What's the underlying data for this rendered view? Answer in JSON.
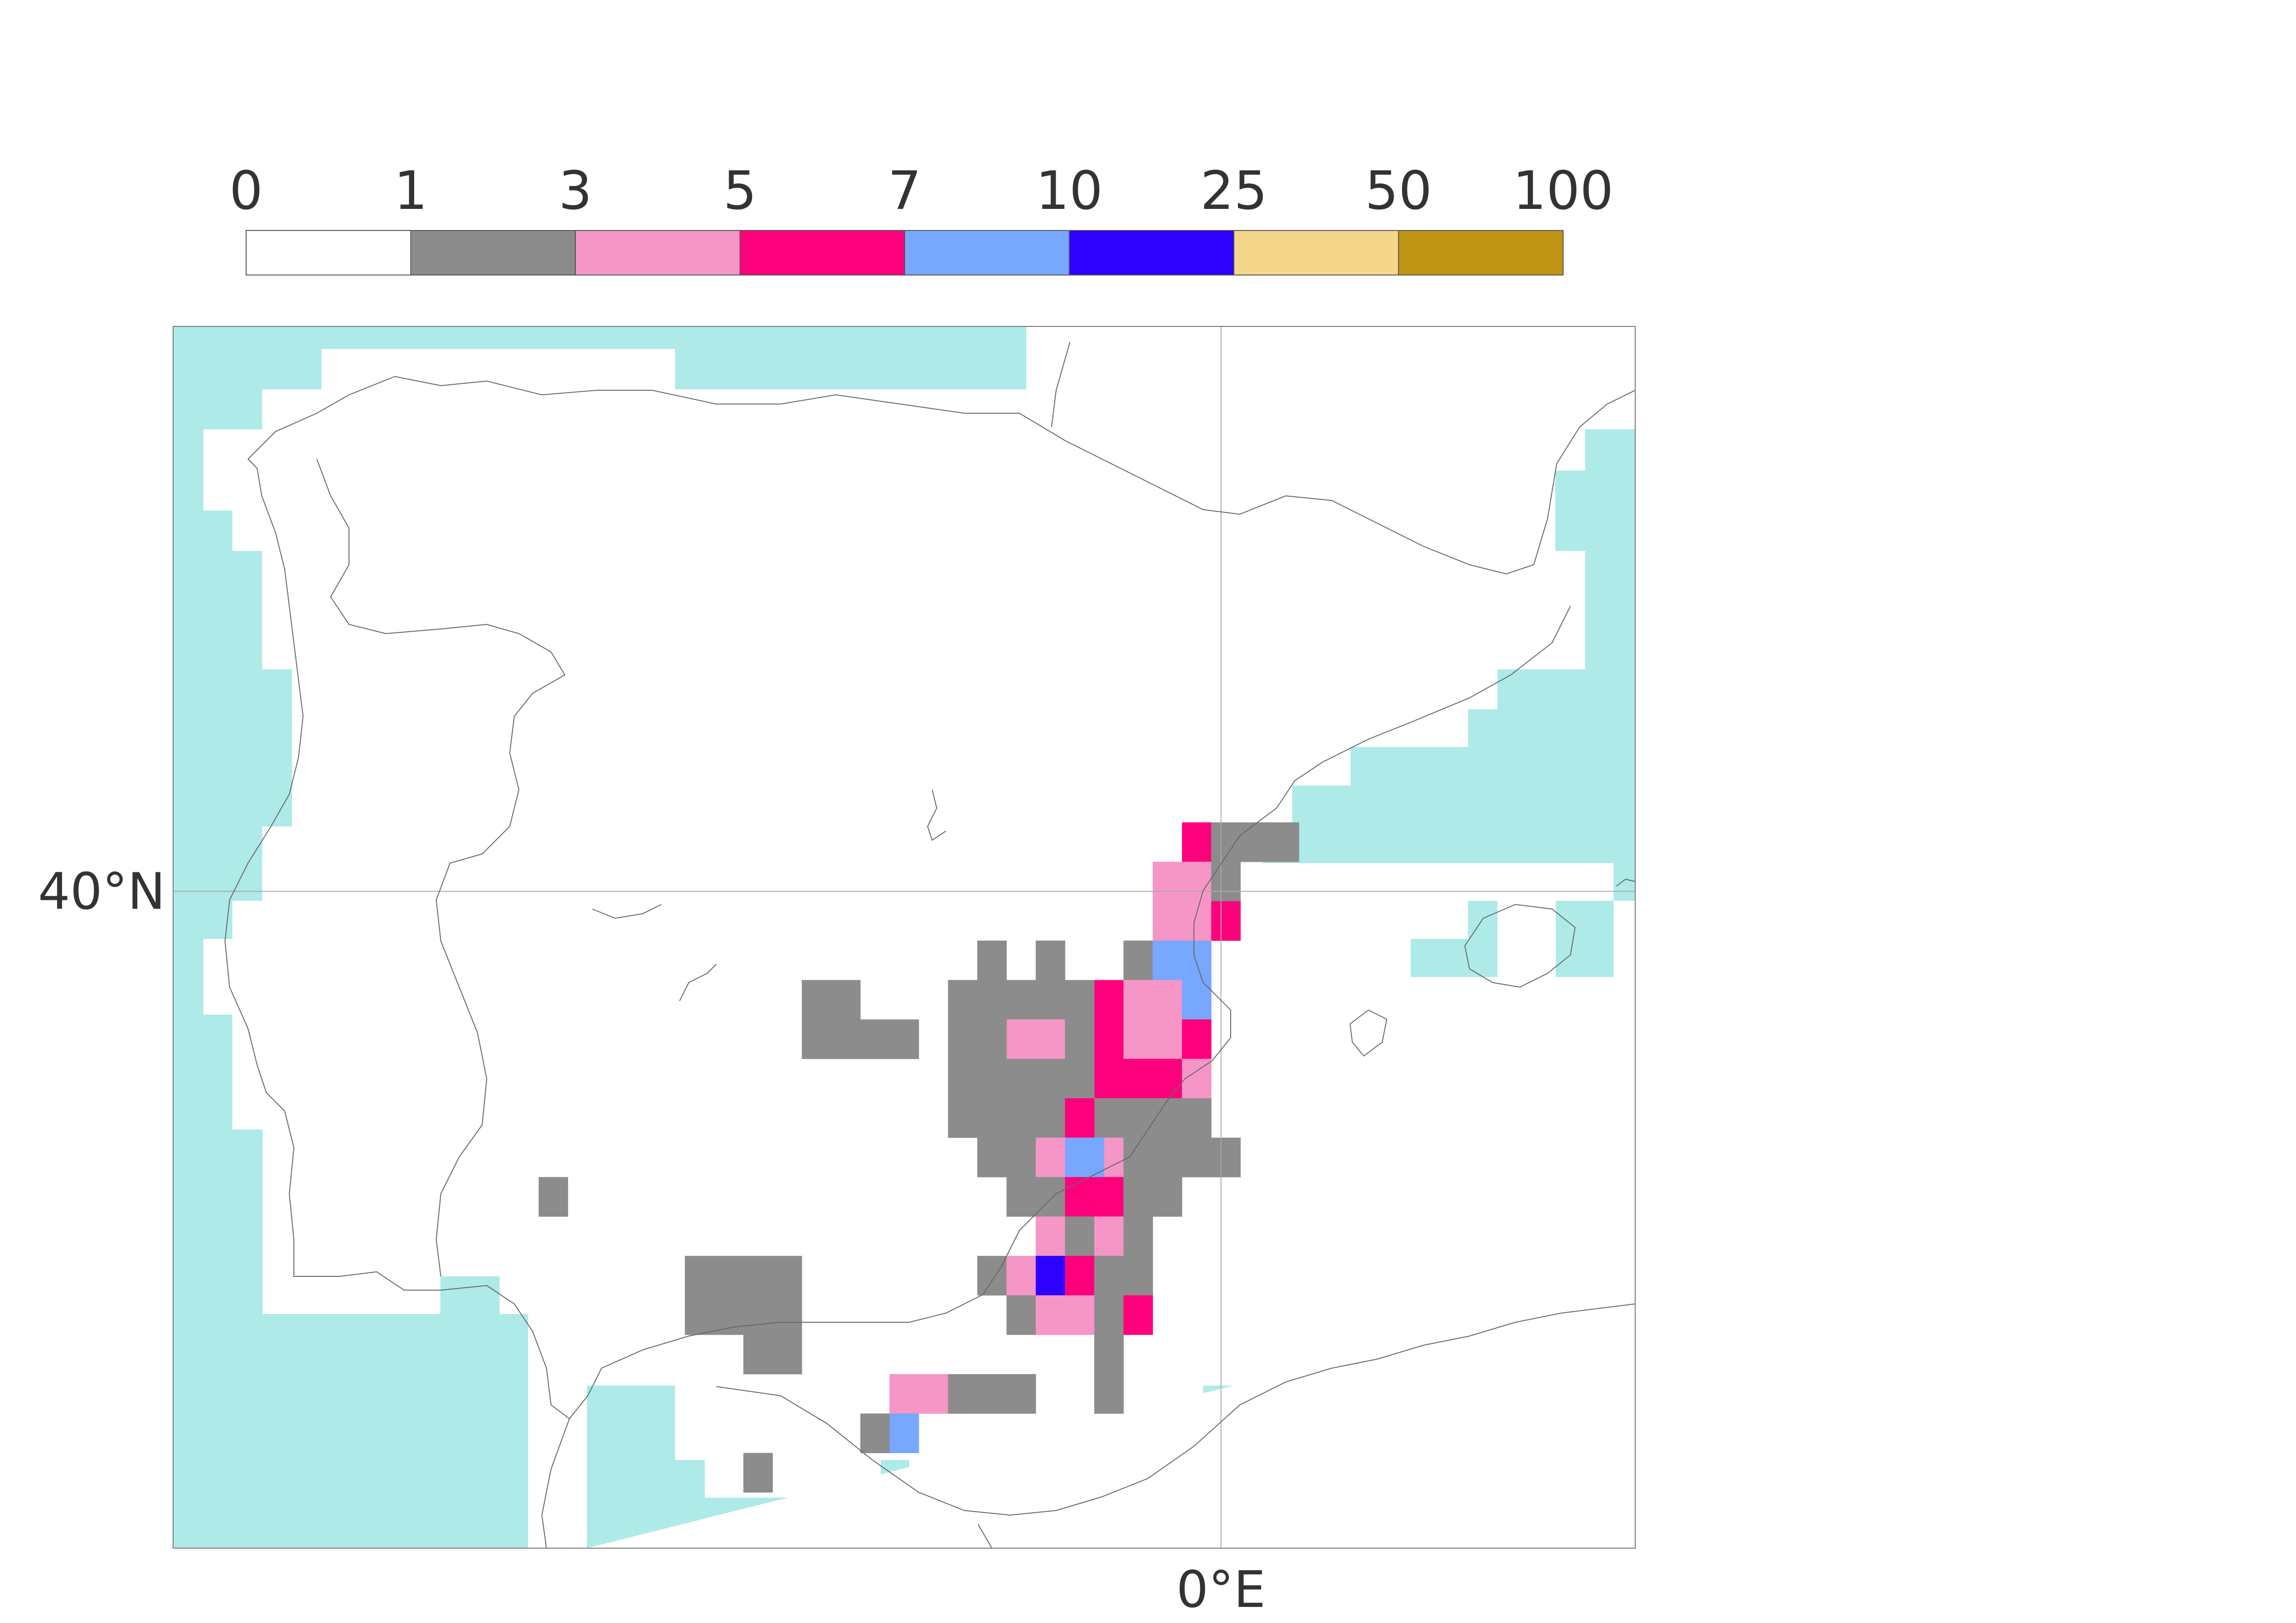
{
  "legend": {
    "labels": [
      "0",
      "1",
      "3",
      "5",
      "7",
      "10",
      "25",
      "50",
      "100"
    ],
    "colors": [
      "#ffffff",
      "#8c8c8c",
      "#f596c6",
      "#ff007d",
      "#78a7ff",
      "#2d00ff",
      "#f5d78c",
      "#bf9314"
    ]
  },
  "map": {
    "sea_color": "#aeeae8",
    "land_color": "#ffffff",
    "coast_color": "#666666",
    "grid_color": "#aaaaaa",
    "lat_label": "40°N",
    "lon_label": "0°E",
    "lat_line": 40,
    "lon_line": 0,
    "extent": {
      "lon_min": -10.75,
      "lon_max": 4.25,
      "lat_min": 35.0,
      "lat_max": 44.3
    },
    "cells_note": ""
  },
  "grid_cells": [
    {
      "lon": -0.25,
      "lat": 40.375,
      "cls": 3
    },
    {
      "lon": 0.05,
      "lat": 40.375,
      "cls": 1
    },
    {
      "lon": 0.35,
      "lat": 40.375,
      "cls": 1
    },
    {
      "lon": 0.65,
      "lat": 40.375,
      "cls": 1
    },
    {
      "lon": -0.55,
      "lat": 40.075,
      "cls": 2
    },
    {
      "lon": -0.25,
      "lat": 40.075,
      "cls": 2
    },
    {
      "lon": 0.05,
      "lat": 40.075,
      "cls": 1
    },
    {
      "lon": -0.55,
      "lat": 39.775,
      "cls": 2
    },
    {
      "lon": -0.25,
      "lat": 39.775,
      "cls": 2
    },
    {
      "lon": 0.05,
      "lat": 39.775,
      "cls": 3
    },
    {
      "lon": -0.85,
      "lat": 39.475,
      "cls": 1
    },
    {
      "lon": -0.55,
      "lat": 39.475,
      "cls": 4
    },
    {
      "lon": -0.25,
      "lat": 39.475,
      "cls": 4
    },
    {
      "lon": -1.15,
      "lat": 39.175,
      "cls": 3
    },
    {
      "lon": -0.85,
      "lat": 39.175,
      "cls": 2
    },
    {
      "lon": -0.55,
      "lat": 39.175,
      "cls": 2
    },
    {
      "lon": -0.25,
      "lat": 39.175,
      "cls": 4
    },
    {
      "lon": -1.15,
      "lat": 38.875,
      "cls": 3
    },
    {
      "lon": -0.85,
      "lat": 38.875,
      "cls": 2
    },
    {
      "lon": -0.55,
      "lat": 38.875,
      "cls": 2
    },
    {
      "lon": -0.25,
      "lat": 38.875,
      "cls": 3
    },
    {
      "lon": -1.15,
      "lat": 38.575,
      "cls": 3
    },
    {
      "lon": -0.85,
      "lat": 38.575,
      "cls": 3
    },
    {
      "lon": -0.55,
      "lat": 38.575,
      "cls": 3
    },
    {
      "lon": -0.25,
      "lat": 38.575,
      "cls": 2
    },
    {
      "lon": -1.15,
      "lat": 38.275,
      "cls": 1
    },
    {
      "lon": -0.85,
      "lat": 38.275,
      "cls": 1
    },
    {
      "lon": -0.55,
      "lat": 38.275,
      "cls": 1
    },
    {
      "lon": -0.25,
      "lat": 38.275,
      "cls": 1
    },
    {
      "lon": -4.15,
      "lat": 39.175,
      "cls": 1
    },
    {
      "lon": -3.85,
      "lat": 39.175,
      "cls": 1
    },
    {
      "lon": -4.15,
      "lat": 38.875,
      "cls": 1
    },
    {
      "lon": -3.85,
      "lat": 38.875,
      "cls": 1
    },
    {
      "lon": -3.55,
      "lat": 38.875,
      "cls": 1
    },
    {
      "lon": -3.25,
      "lat": 38.875,
      "cls": 1
    },
    {
      "lon": -2.65,
      "lat": 39.175,
      "cls": 1
    },
    {
      "lon": -2.35,
      "lat": 39.175,
      "cls": 1
    },
    {
      "lon": -2.05,
      "lat": 39.175,
      "cls": 1
    },
    {
      "lon": -1.75,
      "lat": 39.175,
      "cls": 1
    },
    {
      "lon": -1.45,
      "lat": 39.175,
      "cls": 1
    },
    {
      "lon": -2.35,
      "lat": 39.475,
      "cls": 1
    },
    {
      "lon": -1.75,
      "lat": 39.475,
      "cls": 1
    },
    {
      "lon": -2.05,
      "lat": 38.875,
      "cls": 2
    },
    {
      "lon": -1.75,
      "lat": 38.875,
      "cls": 2
    },
    {
      "lon": -1.45,
      "lat": 38.875,
      "cls": 1
    },
    {
      "lon": -2.65,
      "lat": 38.875,
      "cls": 1
    },
    {
      "lon": -2.35,
      "lat": 38.875,
      "cls": 1
    },
    {
      "lon": -2.65,
      "lat": 38.575,
      "cls": 1
    },
    {
      "lon": -2.35,
      "lat": 38.575,
      "cls": 1
    },
    {
      "lon": -2.05,
      "lat": 38.575,
      "cls": 1
    },
    {
      "lon": -1.75,
      "lat": 38.575,
      "cls": 1
    },
    {
      "lon": -1.45,
      "lat": 38.575,
      "cls": 1
    },
    {
      "lon": -2.65,
      "lat": 38.275,
      "cls": 1
    },
    {
      "lon": -2.35,
      "lat": 38.275,
      "cls": 1
    },
    {
      "lon": -2.05,
      "lat": 38.275,
      "cls": 1
    },
    {
      "lon": -1.75,
      "lat": 38.275,
      "cls": 1
    },
    {
      "lon": -1.45,
      "lat": 38.275,
      "cls": 3
    },
    {
      "lon": -1.15,
      "lat": 37.975,
      "cls": 2
    },
    {
      "lon": -0.85,
      "lat": 37.975,
      "cls": 1
    },
    {
      "lon": -0.55,
      "lat": 37.975,
      "cls": 1
    },
    {
      "lon": -0.25,
      "lat": 37.975,
      "cls": 1
    },
    {
      "lon": 0.05,
      "lat": 37.975,
      "cls": 1
    },
    {
      "lon": -2.35,
      "lat": 37.975,
      "cls": 1
    },
    {
      "lon": -2.05,
      "lat": 37.975,
      "cls": 1
    },
    {
      "lon": -1.75,
      "lat": 37.975,
      "cls": 2
    },
    {
      "lon": -1.45,
      "lat": 37.975,
      "cls": 4
    },
    {
      "lon": -1.35,
      "lat": 37.975,
      "cls": 4
    },
    {
      "lon": -2.05,
      "lat": 37.675,
      "cls": 1
    },
    {
      "lon": -1.75,
      "lat": 37.675,
      "cls": 1
    },
    {
      "lon": -1.45,
      "lat": 37.675,
      "cls": 3
    },
    {
      "lon": -1.15,
      "lat": 37.675,
      "cls": 3
    },
    {
      "lon": -0.85,
      "lat": 37.675,
      "cls": 1
    },
    {
      "lon": -0.55,
      "lat": 37.675,
      "cls": 1
    },
    {
      "lon": -1.75,
      "lat": 37.375,
      "cls": 2
    },
    {
      "lon": -1.45,
      "lat": 37.375,
      "cls": 1
    },
    {
      "lon": -1.15,
      "lat": 37.375,
      "cls": 2
    },
    {
      "lon": -0.85,
      "lat": 37.375,
      "cls": 1
    },
    {
      "lon": -2.35,
      "lat": 37.075,
      "cls": 1
    },
    {
      "lon": -2.05,
      "lat": 37.075,
      "cls": 2
    },
    {
      "lon": -1.75,
      "lat": 37.075,
      "cls": 5
    },
    {
      "lon": -1.45,
      "lat": 37.075,
      "cls": 3
    },
    {
      "lon": -1.15,
      "lat": 37.075,
      "cls": 1
    },
    {
      "lon": -0.85,
      "lat": 37.075,
      "cls": 1
    },
    {
      "lon": -2.05,
      "lat": 36.775,
      "cls": 1
    },
    {
      "lon": -1.75,
      "lat": 36.775,
      "cls": 2
    },
    {
      "lon": -1.45,
      "lat": 36.775,
      "cls": 2
    },
    {
      "lon": -1.15,
      "lat": 36.775,
      "cls": 1
    },
    {
      "lon": -0.85,
      "lat": 36.775,
      "cls": 3
    },
    {
      "lon": -1.15,
      "lat": 36.475,
      "cls": 1
    },
    {
      "lon": -1.15,
      "lat": 36.175,
      "cls": 1
    },
    {
      "lon": -6.85,
      "lat": 37.675,
      "cls": 1
    },
    {
      "lon": -5.35,
      "lat": 37.075,
      "cls": 1
    },
    {
      "lon": -5.05,
      "lat": 37.075,
      "cls": 1
    },
    {
      "lon": -4.75,
      "lat": 37.075,
      "cls": 1
    },
    {
      "lon": -4.45,
      "lat": 37.075,
      "cls": 1
    },
    {
      "lon": -5.35,
      "lat": 36.775,
      "cls": 1
    },
    {
      "lon": -5.05,
      "lat": 36.775,
      "cls": 1
    },
    {
      "lon": -4.75,
      "lat": 36.775,
      "cls": 1
    },
    {
      "lon": -4.45,
      "lat": 36.775,
      "cls": 1
    },
    {
      "lon": -4.75,
      "lat": 36.475,
      "cls": 1
    },
    {
      "lon": -4.45,
      "lat": 36.475,
      "cls": 1
    },
    {
      "lon": -3.25,
      "lat": 36.175,
      "cls": 2
    },
    {
      "lon": -2.95,
      "lat": 36.175,
      "cls": 2
    },
    {
      "lon": -2.65,
      "lat": 36.175,
      "cls": 1
    },
    {
      "lon": -2.35,
      "lat": 36.175,
      "cls": 1
    },
    {
      "lon": -2.05,
      "lat": 36.175,
      "cls": 1
    },
    {
      "lon": -3.55,
      "lat": 35.875,
      "cls": 1
    },
    {
      "lon": -3.25,
      "lat": 35.875,
      "cls": 4
    },
    {
      "lon": -4.75,
      "lat": 35.575,
      "cls": 1
    }
  ]
}
